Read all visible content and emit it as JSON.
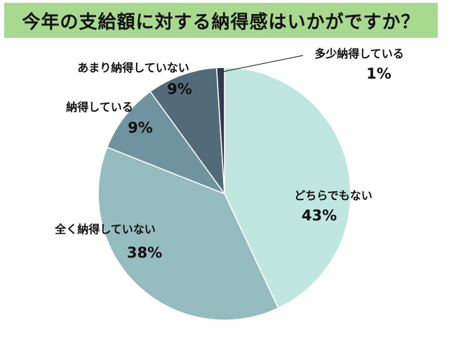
{
  "chart_data": {
    "type": "pie",
    "title": "今年の支給額に対する納得感はいかがですか？",
    "unit": "%",
    "slices": [
      {
        "label": "どちらでもない",
        "value": 43,
        "value_label": "43%",
        "color": "#bfe7df"
      },
      {
        "label": "全く納得していない",
        "value": 38,
        "value_label": "38%",
        "color": "#95bcbf"
      },
      {
        "label": "納得している",
        "value": 9,
        "value_label": "9%",
        "color": "#6f949d"
      },
      {
        "label": "あまり納得していない",
        "value": 9,
        "value_label": "9%",
        "color": "#536b79"
      },
      {
        "label": "多少納得している",
        "value": 1,
        "value_label": "1%",
        "color": "#333a4f"
      }
    ]
  }
}
